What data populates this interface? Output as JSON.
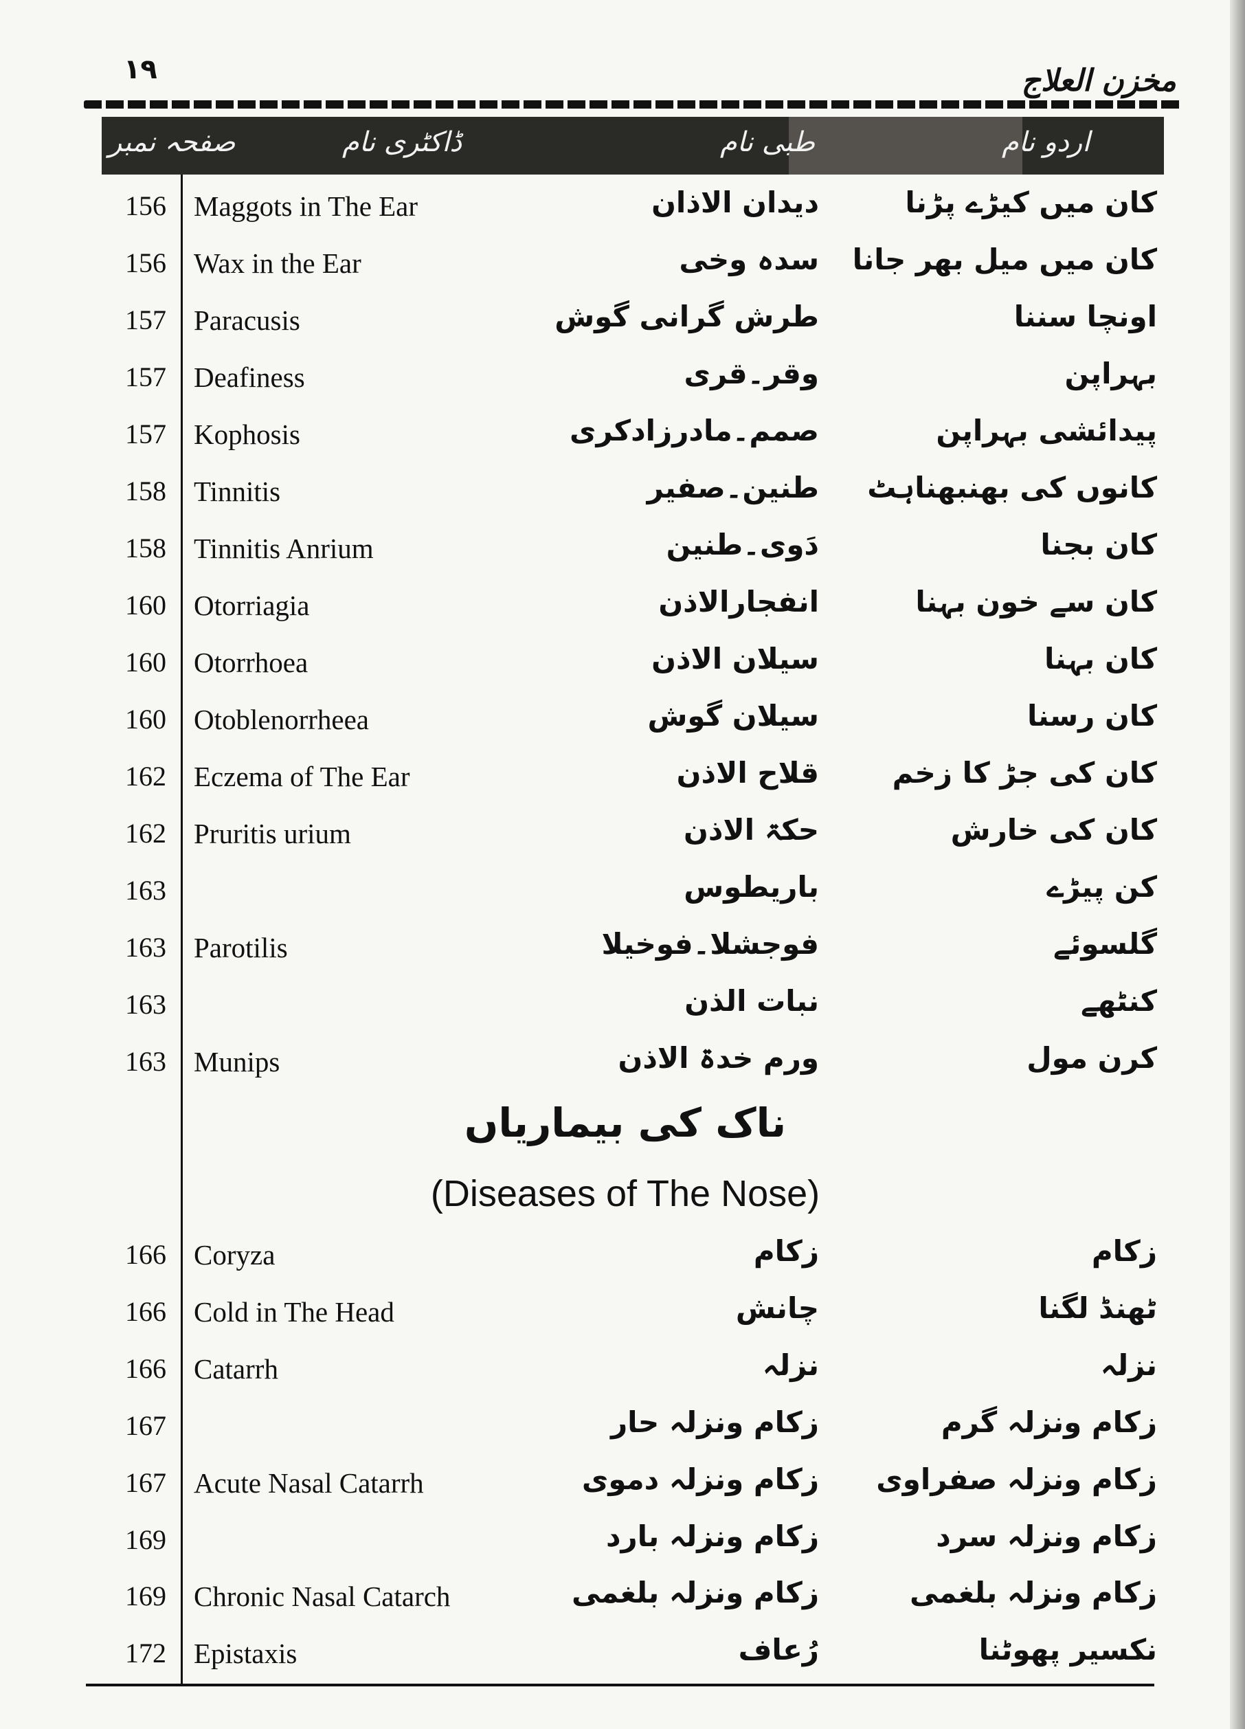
{
  "page_number": "١٩",
  "book_title": "مخزن العلاج",
  "headers": {
    "page_no": "صفحہ نمبر",
    "doctor_name": "ڈاکٹری نام",
    "tibbi_name": "طبی نام",
    "urdu_name": "اردو نام"
  },
  "ear_rows": [
    {
      "page": "156",
      "english": "Maggots in The Ear",
      "tibbi": "دیدان الاذان",
      "urdu": "کان میں کیڑے پڑنا"
    },
    {
      "page": "156",
      "english": "Wax in the Ear",
      "tibbi": "سدہ وخی",
      "urdu": "کان میں میل بھر جانا"
    },
    {
      "page": "157",
      "english": "Paracusis",
      "tibbi": "طرش گرانی گوش",
      "urdu": "اونچا سننا"
    },
    {
      "page": "157",
      "english": "Deafiness",
      "tibbi": "وقر۔قری",
      "urdu": "بہراپن"
    },
    {
      "page": "157",
      "english": "Kophosis",
      "tibbi": "صمم۔مادرزادکری",
      "urdu": "پیدائشی بہراپن"
    },
    {
      "page": "158",
      "english": "Tinnitis",
      "tibbi": "طنین۔صفیر",
      "urdu": "کانوں کی بھنبھناہٹ"
    },
    {
      "page": "158",
      "english": "Tinnitis Anrium",
      "tibbi": "دَوی۔طنین",
      "urdu": "کان بجنا"
    },
    {
      "page": "160",
      "english": "Otorriagia",
      "tibbi": "انفجارالاذن",
      "urdu": "کان سے خون بہنا"
    },
    {
      "page": "160",
      "english": "Otorrhoea",
      "tibbi": "سیلان الاذن",
      "urdu": "کان بہنا"
    },
    {
      "page": "160",
      "english": "Otoblenorrheea",
      "tibbi": "سیلان گوش",
      "urdu": "کان رسنا"
    },
    {
      "page": "162",
      "english": "Eczema of The Ear",
      "tibbi": "قلاح الاذن",
      "urdu": "کان کی جڑ کا زخم"
    },
    {
      "page": "162",
      "english": "Pruritis urium",
      "tibbi": "حکۃ الاذن",
      "urdu": "کان کی خارش"
    },
    {
      "page": "163",
      "english": "",
      "tibbi": "باریطوس",
      "urdu": "کن پیڑے"
    },
    {
      "page": "163",
      "english": "Parotilis",
      "tibbi": "فوجشلا۔فوخیلا",
      "urdu": "گلسوئے"
    },
    {
      "page": "163",
      "english": "",
      "tibbi": "نبات الذن",
      "urdu": "کنٹھے"
    },
    {
      "page": "163",
      "english": "Munips",
      "tibbi": "ورم خدۃ الاذن",
      "urdu": "کرن مول"
    }
  ],
  "section": {
    "urdu_title": "ناک کی بیماریاں",
    "english_title": "(Diseases of The Nose)"
  },
  "nose_rows": [
    {
      "page": "166",
      "english": "Coryza",
      "tibbi": "زکام",
      "urdu": "زکام"
    },
    {
      "page": "166",
      "english": "Cold in The Head",
      "tibbi": "چانش",
      "urdu": "ٹھنڈ لگنا"
    },
    {
      "page": "166",
      "english": "Catarrh",
      "tibbi": "نزلہ",
      "urdu": "نزلہ"
    },
    {
      "page": "167",
      "english": "",
      "tibbi": "زکام ونزلہ حار",
      "urdu": "زکام ونزلہ گرم"
    },
    {
      "page": "167",
      "english": "Acute Nasal Catarrh",
      "tibbi": "زکام ونزلہ دموی",
      "urdu": "زکام ونزلہ صفراوی"
    },
    {
      "page": "169",
      "english": "",
      "tibbi": "زکام ونزلہ بارد",
      "urdu": "زکام ونزلہ سرد"
    },
    {
      "page": "169",
      "english": "Chronic Nasal Catarch",
      "tibbi": "زکام ونزلہ بلغمی",
      "urdu": "زکام ونزلہ بلغمی"
    },
    {
      "page": "172",
      "english": "Epistaxis",
      "tibbi": "رُعاف",
      "urdu": "نکسیر پھوٹنا"
    }
  ]
}
